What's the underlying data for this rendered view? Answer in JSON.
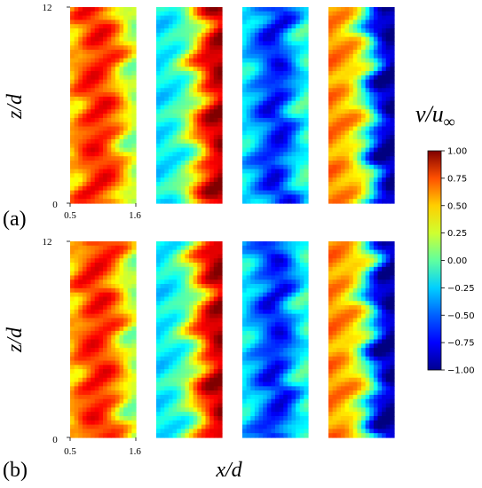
{
  "chart_data": {
    "type": "heatmap",
    "colormap": "jet",
    "row_labels": [
      "(a)",
      "(b)"
    ],
    "xlabel": "x/d",
    "ylabel": "z/d",
    "x_ticks": [
      "0.5",
      "1.6"
    ],
    "z_ticks": [
      "0",
      "12"
    ],
    "xlim": [
      0.5,
      1.6
    ],
    "zlim": [
      0,
      12
    ],
    "colorbar": {
      "label_base": "v/u",
      "label_sub": "∞",
      "vmin": -1.0,
      "vmax": 1.0,
      "ticks": [
        "1.00",
        "0.75",
        "0.50",
        "0.25",
        "0.00",
        "−0.25",
        "−0.50",
        "−0.75",
        "−1.00"
      ]
    },
    "panels": [
      {
        "row": "(a)",
        "column": 1,
        "mean_profile": [
          0.35,
          0.55,
          0.68,
          0.72,
          0.66,
          0.5,
          0.25,
          0.05
        ]
      },
      {
        "row": "(a)",
        "column": 2,
        "mean_profile": [
          -0.3,
          -0.25,
          -0.2,
          -0.05,
          0.2,
          0.55,
          0.8,
          0.92
        ]
      },
      {
        "row": "(a)",
        "column": 3,
        "mean_profile": [
          -0.25,
          -0.4,
          -0.55,
          -0.72,
          -0.75,
          -0.55,
          -0.3,
          -0.15
        ]
      },
      {
        "row": "(a)",
        "column": 4,
        "mean_profile": [
          0.5,
          0.45,
          0.4,
          0.25,
          -0.05,
          -0.55,
          -0.88,
          -0.95
        ]
      },
      {
        "row": "(b)",
        "column": 1,
        "mean_profile": [
          0.35,
          0.55,
          0.68,
          0.72,
          0.66,
          0.5,
          0.25,
          0.05
        ]
      },
      {
        "row": "(b)",
        "column": 2,
        "mean_profile": [
          -0.3,
          -0.25,
          -0.2,
          -0.05,
          0.2,
          0.55,
          0.8,
          0.92
        ]
      },
      {
        "row": "(b)",
        "column": 3,
        "mean_profile": [
          -0.25,
          -0.4,
          -0.55,
          -0.72,
          -0.75,
          -0.55,
          -0.3,
          -0.15
        ]
      },
      {
        "row": "(b)",
        "column": 4,
        "mean_profile": [
          0.5,
          0.45,
          0.4,
          0.25,
          -0.05,
          -0.55,
          -0.88,
          -0.95
        ]
      }
    ]
  }
}
